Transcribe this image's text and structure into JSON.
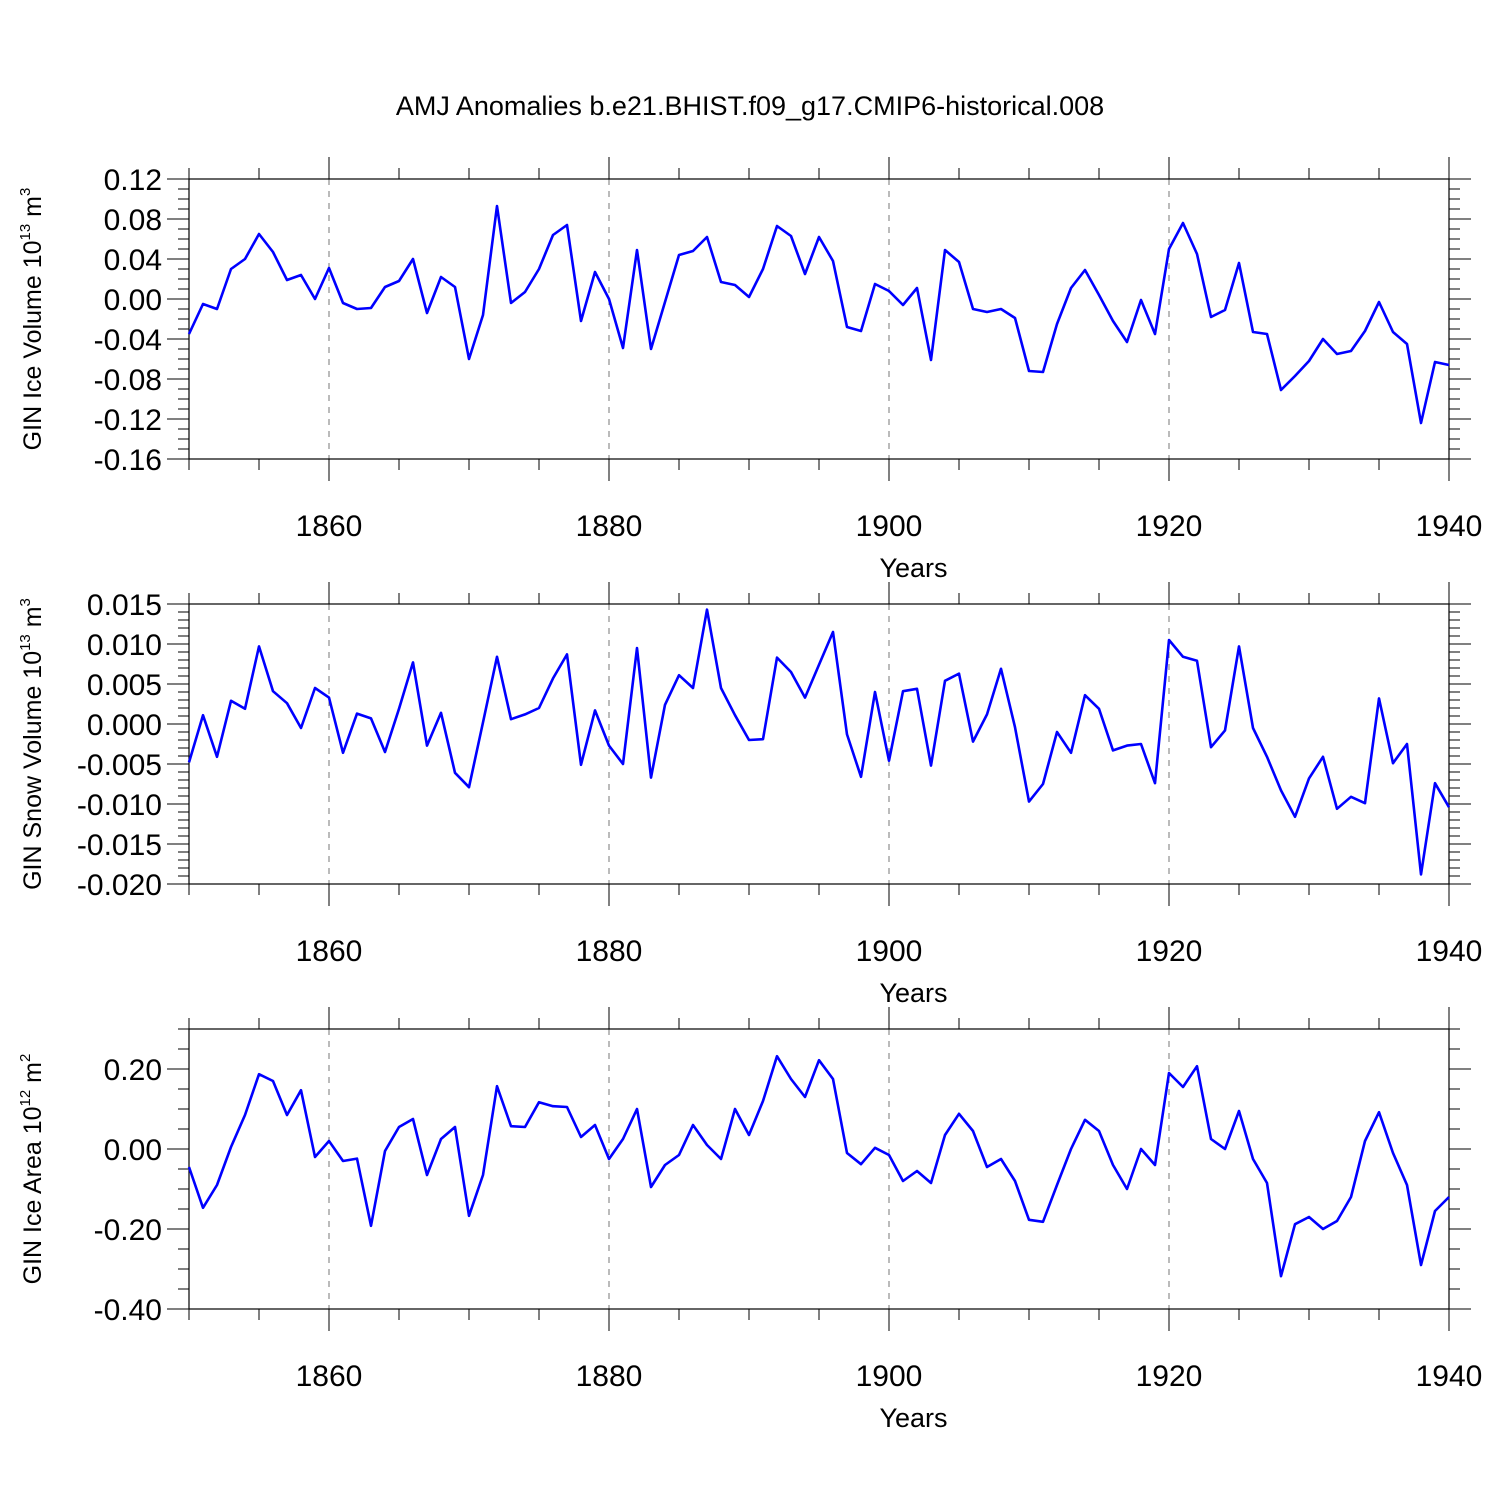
{
  "chart_data": {
    "title": "AMJ Anomalies b.e21.BHIST.f09_g17.CMIP6-historical.008",
    "panels": [
      {
        "type": "line",
        "ylabel": {
          "text": "GIN Ice Volume 10",
          "exp": "13",
          "unit": " m",
          "unit_exp": "3"
        },
        "xlabel": "Years",
        "xlim": [
          1850,
          1940
        ],
        "xticks": [
          1860,
          1880,
          1900,
          1920,
          1940
        ],
        "ylim": [
          -0.16,
          0.12
        ],
        "yticks": [
          0.12,
          0.08,
          0.04,
          0.0,
          -0.04,
          -0.08,
          -0.12,
          -0.16
        ],
        "ytick_labels": [
          "0.12",
          "0.08",
          "0.04",
          "0.00",
          "-0.04",
          "-0.08",
          "-0.12",
          "-0.16"
        ],
        "ymin_step": 0.01,
        "color": "#0000ff",
        "series": [
          {
            "name": "GIN Ice Volume",
            "start_year": 1850,
            "values": [
              -0.035,
              -0.005,
              -0.01,
              0.03,
              0.04,
              0.065,
              0.047,
              0.019,
              0.024,
              0.0,
              0.031,
              -0.004,
              -0.01,
              -0.009,
              0.012,
              0.018,
              0.04,
              -0.014,
              0.022,
              0.012,
              -0.06,
              -0.016,
              0.093,
              -0.004,
              0.007,
              0.03,
              0.064,
              0.074,
              -0.022,
              0.027,
              0.0,
              -0.049,
              0.049,
              -0.05,
              -0.003,
              0.044,
              0.048,
              0.062,
              0.017,
              0.014,
              0.002,
              0.03,
              0.073,
              0.063,
              0.025,
              0.062,
              0.038,
              -0.028,
              -0.032,
              0.015,
              0.008,
              -0.006,
              0.011,
              -0.061,
              0.049,
              0.037,
              -0.01,
              -0.013,
              -0.01,
              -0.019,
              -0.072,
              -0.073,
              -0.025,
              0.011,
              0.029,
              0.004,
              -0.022,
              -0.043,
              -0.001,
              -0.035,
              0.05,
              0.076,
              0.045,
              -0.018,
              -0.011,
              0.036,
              -0.033,
              -0.035,
              -0.091,
              -0.077,
              -0.062,
              -0.04,
              -0.055,
              -0.052,
              -0.032,
              -0.003,
              -0.033,
              -0.045,
              -0.124,
              -0.063,
              -0.066
            ]
          }
        ]
      },
      {
        "type": "line",
        "ylabel": {
          "text": "GIN Snow Volume 10",
          "exp": "13",
          "unit": " m",
          "unit_exp": "3"
        },
        "xlabel": "Years",
        "xlim": [
          1850,
          1940
        ],
        "xticks": [
          1860,
          1880,
          1900,
          1920,
          1940
        ],
        "ylim": [
          -0.02,
          0.015
        ],
        "yticks": [
          0.015,
          0.01,
          0.005,
          0.0,
          -0.005,
          -0.01,
          -0.015,
          -0.02
        ],
        "ytick_labels": [
          "0.015",
          "0.010",
          "0.005",
          "0.000",
          "-0.005",
          "-0.010",
          "-0.015",
          "-0.020"
        ],
        "ymin_step": 0.001,
        "color": "#0000ff",
        "series": [
          {
            "name": "GIN Snow Volume",
            "start_year": 1850,
            "values": [
              -0.0048,
              0.0011,
              -0.0041,
              0.0029,
              0.0019,
              0.0097,
              0.0041,
              0.0026,
              -0.0005,
              0.0045,
              0.0033,
              -0.0036,
              0.0013,
              0.0007,
              -0.0035,
              0.0019,
              0.0077,
              -0.0027,
              0.0014,
              -0.0061,
              -0.0079,
              0.0002,
              0.0084,
              0.0006,
              0.0012,
              0.002,
              0.0057,
              0.0087,
              -0.0051,
              0.0017,
              -0.0027,
              -0.005,
              0.0095,
              -0.0067,
              0.0024,
              0.0061,
              0.0045,
              0.0143,
              0.0045,
              0.0011,
              -0.002,
              -0.0019,
              0.0083,
              0.0065,
              0.0033,
              0.0074,
              0.0115,
              -0.0013,
              -0.0066,
              0.004,
              -0.0046,
              0.0041,
              0.0044,
              -0.0052,
              0.0054,
              0.0063,
              -0.0022,
              0.0012,
              0.0069,
              -0.0004,
              -0.0097,
              -0.0075,
              -0.001,
              -0.0036,
              0.0036,
              0.0019,
              -0.0033,
              -0.0027,
              -0.0025,
              -0.0074,
              0.0105,
              0.0084,
              0.0079,
              -0.0029,
              -0.0008,
              0.0097,
              -0.0005,
              -0.0041,
              -0.0083,
              -0.0116,
              -0.0068,
              -0.0041,
              -0.0106,
              -0.0091,
              -0.0099,
              0.0032,
              -0.0049,
              -0.0025,
              -0.0188,
              -0.0074,
              -0.0104
            ]
          }
        ]
      },
      {
        "type": "line",
        "ylabel": {
          "text": "GIN Ice Area 10",
          "exp": "12",
          "unit": " m",
          "unit_exp": "2"
        },
        "xlabel": "Years",
        "xlim": [
          1850,
          1940
        ],
        "xticks": [
          1860,
          1880,
          1900,
          1920,
          1940
        ],
        "ylim": [
          -0.4,
          0.3
        ],
        "yticks": [
          0.2,
          0.0,
          -0.2,
          -0.4
        ],
        "ytick_labels": [
          "0.20",
          "0.00",
          "-0.20",
          "-0.40"
        ],
        "ymin_step": 0.05,
        "color": "#0000ff",
        "series": [
          {
            "name": "GIN Ice Area",
            "start_year": 1850,
            "values": [
              -0.045,
              -0.147,
              -0.09,
              0.005,
              0.085,
              0.187,
              0.17,
              0.085,
              0.147,
              -0.02,
              0.02,
              -0.03,
              -0.024,
              -0.192,
              -0.005,
              0.055,
              0.075,
              -0.065,
              0.025,
              0.055,
              -0.167,
              -0.065,
              0.157,
              0.057,
              0.055,
              0.117,
              0.107,
              0.105,
              0.03,
              0.06,
              -0.025,
              0.025,
              0.1,
              -0.095,
              -0.04,
              -0.015,
              0.06,
              0.01,
              -0.025,
              0.1,
              0.035,
              0.12,
              0.232,
              0.175,
              0.13,
              0.222,
              0.175,
              -0.01,
              -0.038,
              0.003,
              -0.015,
              -0.08,
              -0.055,
              -0.085,
              0.035,
              0.088,
              0.045,
              -0.045,
              -0.025,
              -0.08,
              -0.177,
              -0.182,
              -0.09,
              0.0,
              0.073,
              0.045,
              -0.04,
              -0.1,
              0.0,
              -0.04,
              0.19,
              0.155,
              0.207,
              0.025,
              0.0,
              0.095,
              -0.025,
              -0.085,
              -0.318,
              -0.188,
              -0.17,
              -0.2,
              -0.18,
              -0.12,
              0.02,
              0.092,
              -0.01,
              -0.09,
              -0.29,
              -0.155,
              -0.12
            ]
          }
        ]
      }
    ]
  }
}
